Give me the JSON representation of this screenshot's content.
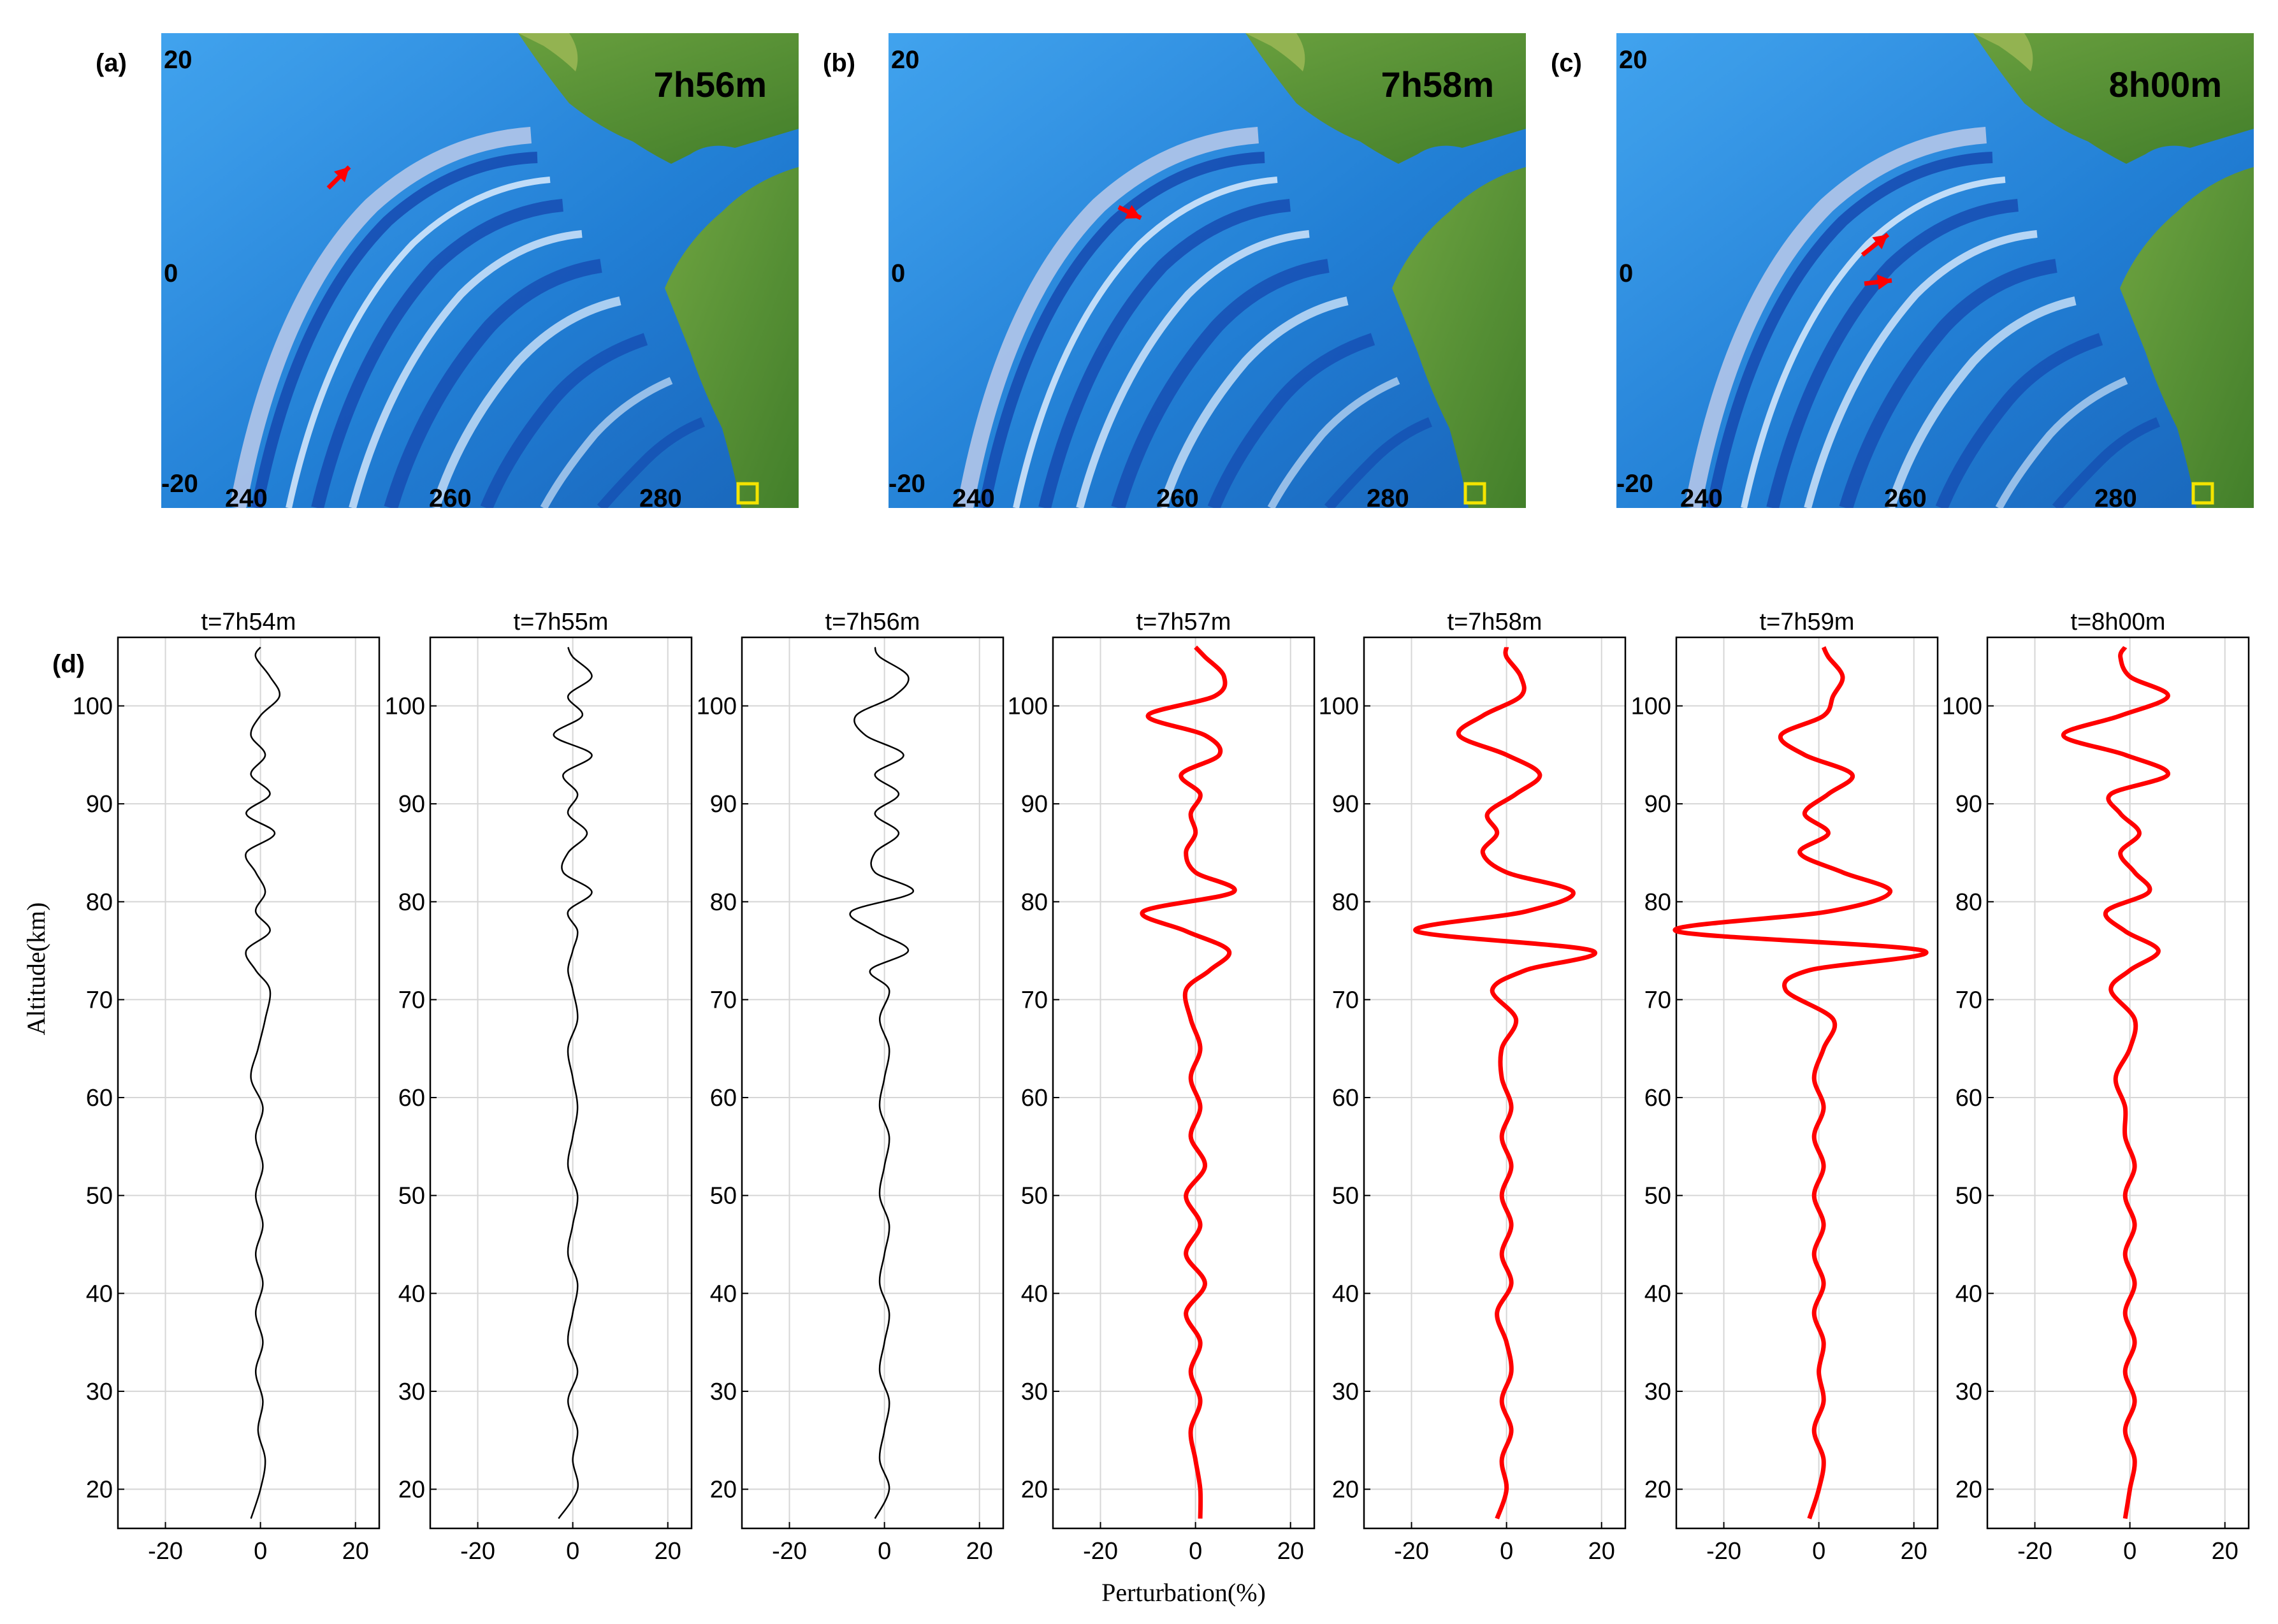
{
  "maps": [
    {
      "panel": "(a)",
      "time": "7h56m",
      "lat_labels": [
        "20",
        "0",
        "-20"
      ],
      "lon_labels": [
        "240",
        "260",
        "280"
      ]
    },
    {
      "panel": "(b)",
      "time": "7h58m",
      "lat_labels": [
        "20",
        "0",
        "-20"
      ],
      "lon_labels": [
        "240",
        "260",
        "280"
      ]
    },
    {
      "panel": "(c)",
      "time": "8h00m",
      "lat_labels": [
        "20",
        "0",
        "-20"
      ],
      "lon_labels": [
        "240",
        "260",
        "280"
      ]
    }
  ],
  "profiles_panel_label": "(d)",
  "colors": {
    "early": "#000000",
    "late": "#ff0000",
    "ocean": "#1e7fd6",
    "land": "#4f8f2a",
    "grid": "#d6d6d6"
  },
  "chart_data": {
    "type": "line",
    "xlabel": "Perturbation(%)",
    "ylabel": "Altitude(km)",
    "xlim": [
      -30,
      25
    ],
    "ylim": [
      16,
      107
    ],
    "xticks": [
      -20,
      0,
      20
    ],
    "yticks": [
      20,
      30,
      40,
      50,
      60,
      70,
      80,
      90,
      100
    ],
    "grid": true,
    "altitude": [
      17,
      20,
      23,
      26,
      29,
      32,
      35,
      38,
      41,
      44,
      47,
      50,
      53,
      56,
      59,
      62,
      65,
      68,
      71,
      73,
      75,
      77,
      79,
      81,
      83,
      85,
      87,
      89,
      91,
      93,
      95,
      97,
      99,
      101,
      103,
      105,
      106
    ],
    "series": [
      {
        "title": "t=7h54m",
        "color": "#000000",
        "values": [
          -2,
          0,
          1,
          -0.5,
          0.5,
          -1,
          0.5,
          -1,
          0.5,
          -1,
          0.5,
          -1,
          0.5,
          -1,
          0.5,
          -2,
          -0.5,
          1,
          2,
          -1,
          -3,
          2,
          -1,
          1,
          -1,
          -3,
          3,
          -3,
          2,
          -2,
          1,
          -2,
          0,
          4,
          2,
          -1,
          0
        ]
      },
      {
        "title": "t=7h55m",
        "color": "#000000",
        "values": [
          -3,
          1,
          0,
          1,
          -1,
          1,
          -1,
          0,
          1,
          -1,
          0,
          1,
          -1,
          0,
          1,
          0,
          -1,
          1,
          0,
          -1,
          0,
          1,
          -1,
          4,
          -2,
          -1,
          3,
          -1,
          1,
          -2,
          4,
          -4,
          2,
          -1,
          4,
          0,
          -1
        ]
      },
      {
        "title": "t=7h56m",
        "color": "#000000",
        "values": [
          -2,
          1,
          -1,
          0,
          1,
          -1,
          0,
          1,
          -1,
          0,
          1,
          -1,
          0,
          1,
          -1,
          0,
          1,
          -1,
          1,
          -3,
          5,
          -2,
          -7,
          6,
          -2,
          -2,
          3,
          -2,
          3,
          -2,
          4,
          -4,
          -6,
          2,
          5,
          -1,
          -2
        ]
      },
      {
        "title": "t=7h57m",
        "color": "#ff0000",
        "values": [
          1,
          1,
          0,
          -1,
          1,
          -1,
          1,
          -2,
          2,
          -2,
          1,
          -2,
          2,
          -1,
          1,
          -1,
          1,
          -1,
          -2,
          3,
          7,
          -2,
          -11,
          8,
          0,
          -2,
          0,
          -1,
          1,
          -3,
          5,
          2,
          -10,
          4,
          6,
          2,
          0
        ]
      },
      {
        "title": "t=7h58m",
        "color": "#ff0000",
        "values": [
          -2,
          0,
          -1,
          1,
          -1,
          1,
          0,
          -2,
          1,
          -1,
          1,
          -1,
          1,
          -1,
          1,
          -1,
          -1,
          2,
          -3,
          4,
          18,
          -19,
          4,
          14,
          0,
          -5,
          -2,
          -4,
          2,
          7,
          0,
          -10,
          -5,
          3,
          3,
          0,
          0
        ]
      },
      {
        "title": "t=7h59m",
        "color": "#ff0000",
        "values": [
          -2,
          0,
          1,
          -1,
          1,
          0,
          1,
          -1,
          1,
          -1,
          1,
          -1,
          1,
          -1,
          1,
          -1,
          1,
          3,
          -7,
          -2,
          22,
          -30,
          2,
          15,
          5,
          -4,
          2,
          -3,
          2,
          7,
          -3,
          -8,
          1,
          3,
          5,
          2,
          1
        ]
      },
      {
        "title": "t=8h00m",
        "color": "#ff0000",
        "values": [
          -1,
          0,
          1,
          -1,
          1,
          -1,
          1,
          -1,
          1,
          -1,
          1,
          -1,
          1,
          -1,
          -1,
          -3,
          0,
          1,
          -4,
          0,
          6,
          -1,
          -5,
          4,
          1,
          -2,
          2,
          -2,
          -4,
          8,
          -1,
          -14,
          -2,
          8,
          0,
          -2,
          -1
        ]
      }
    ]
  }
}
